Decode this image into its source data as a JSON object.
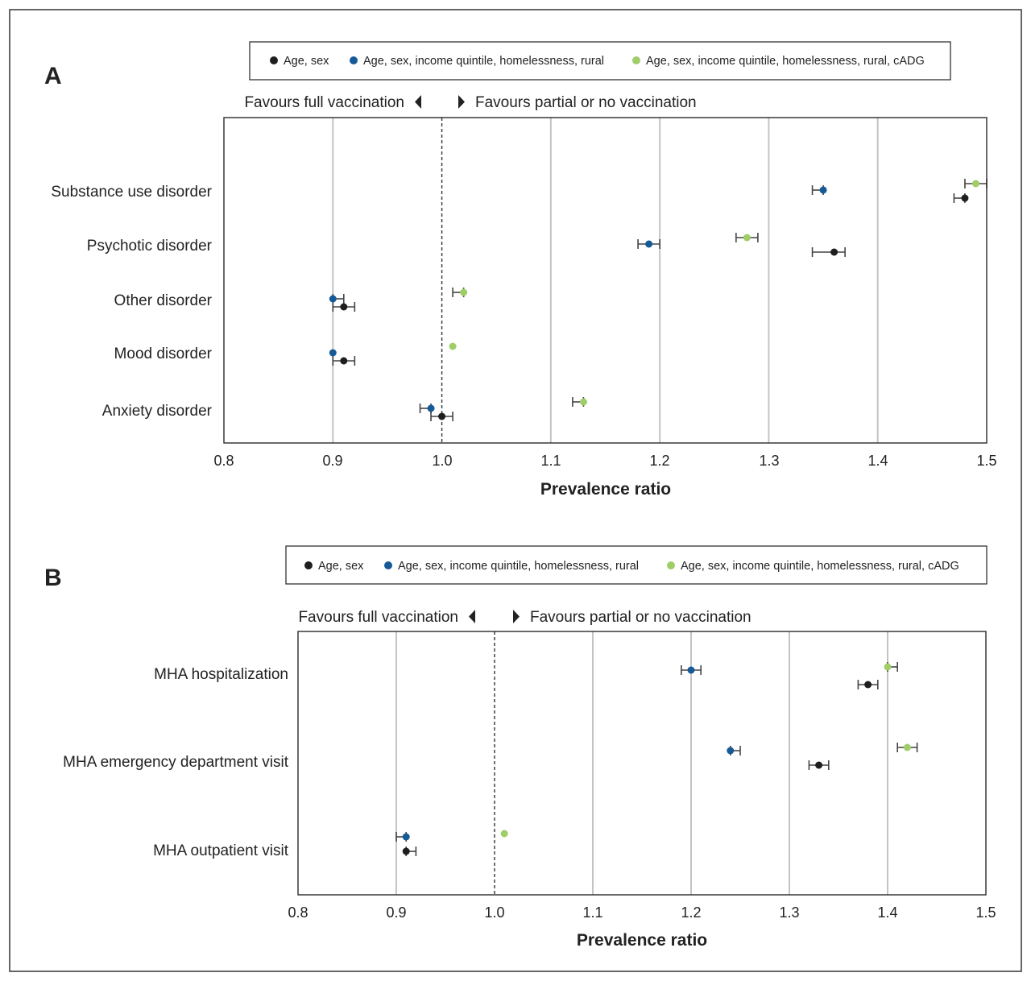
{
  "colors": {
    "series_1": "#1e1e1e",
    "series_2": "#155a96",
    "series_3": "#9fcd68",
    "gridline": "#c4c4c4",
    "frame": "#2b2b2b",
    "reference_line": "#333333",
    "errorbar": "#444444"
  },
  "icons": {
    "left_arrow": "left-triangle-icon",
    "right_arrow": "right-triangle-icon"
  },
  "chart_data": [
    {
      "type": "scatter",
      "panel": "A",
      "legend": [
        "Age, sex",
        "Age, sex, income quintile, homelessness, rural",
        "Age, sex, income quintile, homelessness, rural, cADG"
      ],
      "direction_labels": {
        "left": "Favours full vaccination",
        "right": "Favours partial or no vaccination"
      },
      "xlabel": "Prevalence ratio",
      "xlim": [
        0.8,
        1.5
      ],
      "xticks": [
        0.8,
        0.9,
        1.0,
        1.1,
        1.2,
        1.3,
        1.4,
        1.5
      ],
      "tick_labels": [
        "0.8",
        "0.9",
        "1.0",
        "1.1",
        "1.2",
        "1.3",
        "1.4",
        "1.5"
      ],
      "reference_value": 1.0,
      "grid": true,
      "categories": [
        "Substance use disorder",
        "Psychotic disorder",
        "Other disorder",
        "Mood disorder",
        "Anxiety disorder"
      ],
      "series": [
        {
          "name": "Age, sex",
          "values": [
            1.48,
            1.36,
            0.91,
            0.91,
            1.0
          ],
          "ci_low": [
            1.47,
            1.34,
            0.9,
            0.9,
            0.99
          ],
          "ci_high": [
            1.48,
            1.37,
            0.92,
            0.92,
            1.01
          ]
        },
        {
          "name": "Age, sex, income quintile, homelessness, rural",
          "values": [
            1.35,
            1.19,
            0.9,
            0.9,
            0.99
          ],
          "ci_low": [
            1.34,
            1.18,
            0.9,
            0.9,
            0.98
          ],
          "ci_high": [
            1.35,
            1.2,
            0.91,
            0.9,
            0.99
          ]
        },
        {
          "name": "Age, sex, income quintile, homelessness, rural, cADG",
          "values": [
            1.49,
            1.28,
            1.02,
            1.01,
            1.13
          ],
          "ci_low": [
            1.48,
            1.27,
            1.01,
            1.01,
            1.12
          ],
          "ci_high": [
            1.5,
            1.29,
            1.02,
            1.01,
            1.13
          ]
        }
      ]
    },
    {
      "type": "scatter",
      "panel": "B",
      "legend": [
        "Age, sex",
        "Age, sex, income quintile, homelessness, rural",
        "Age, sex, income quintile, homelessness, rural, cADG"
      ],
      "direction_labels": {
        "left": "Favours full vaccination",
        "right": "Favours partial or no vaccination"
      },
      "xlabel": "Prevalence ratio",
      "xlim": [
        0.8,
        1.5
      ],
      "xticks": [
        0.8,
        0.9,
        1.0,
        1.1,
        1.2,
        1.3,
        1.4,
        1.5
      ],
      "tick_labels": [
        "0.8",
        "0.9",
        "1.0",
        "1.1",
        "1.2",
        "1.3",
        "1.4",
        "1.5"
      ],
      "reference_value": 1.0,
      "grid": true,
      "categories": [
        "MHA hospitalization",
        "MHA emergency department visit",
        "MHA outpatient visit"
      ],
      "series": [
        {
          "name": "Age, sex",
          "values": [
            1.38,
            1.33,
            0.91
          ],
          "ci_low": [
            1.37,
            1.32,
            0.91
          ],
          "ci_high": [
            1.39,
            1.34,
            0.92
          ]
        },
        {
          "name": "Age, sex, income quintile, homelessness, rural",
          "values": [
            1.2,
            1.24,
            0.91
          ],
          "ci_low": [
            1.19,
            1.24,
            0.9
          ],
          "ci_high": [
            1.21,
            1.25,
            0.91
          ]
        },
        {
          "name": "Age, sex, income quintile, homelessness, rural, cADG",
          "values": [
            1.4,
            1.42,
            1.01
          ],
          "ci_low": [
            1.4,
            1.41,
            1.01
          ],
          "ci_high": [
            1.41,
            1.43,
            1.01
          ]
        }
      ]
    }
  ]
}
